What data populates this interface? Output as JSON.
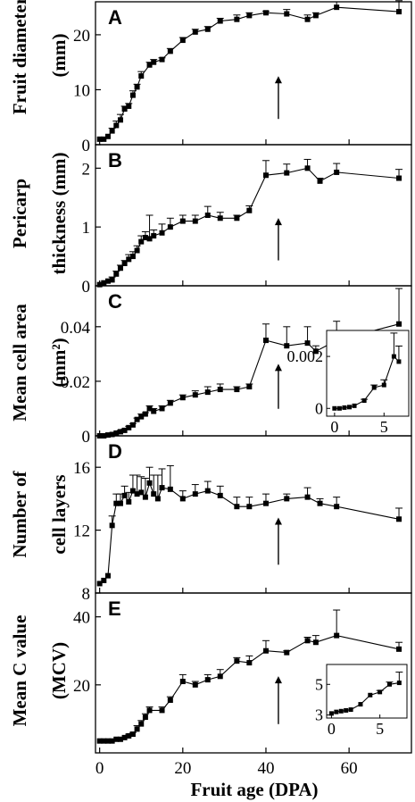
{
  "chart_data": [
    {
      "type": "line",
      "panel": "A",
      "ylabel": [
        "Fruit diameter",
        "(mm)"
      ],
      "xlim": [
        -1,
        75
      ],
      "ylim": [
        0,
        26
      ],
      "yticks": [
        0,
        10,
        20
      ],
      "arrow_x": 43,
      "series": [
        {
          "x": [
            0,
            1,
            2,
            3,
            4,
            5,
            6,
            7,
            8,
            9,
            10,
            12,
            13,
            15,
            17,
            20,
            23,
            26,
            29,
            33,
            36,
            40,
            45,
            50,
            52,
            57,
            72
          ],
          "y": [
            1,
            1,
            1.5,
            2.5,
            3.5,
            4.5,
            6.5,
            7,
            9,
            10.5,
            12.5,
            14.5,
            15,
            15.5,
            17,
            19,
            20.5,
            21,
            22.5,
            22.8,
            23.5,
            24,
            23.8,
            22.8,
            23.5,
            25,
            24.2
          ],
          "err": [
            0,
            0,
            0,
            0.5,
            0.8,
            1,
            0.5,
            0.5,
            0.8,
            0.5,
            0.8,
            0.5,
            0.5,
            0.3,
            0.5,
            0.5,
            0.5,
            0.5,
            0.5,
            0.8,
            0.5,
            0.3,
            0.8,
            0.8,
            0.5,
            1,
            2
          ]
        }
      ]
    },
    {
      "type": "line",
      "panel": "B",
      "ylabel": [
        "Pericarp",
        "thickness (mm)"
      ],
      "xlim": [
        -1,
        75
      ],
      "ylim": [
        0,
        2.4
      ],
      "yticks": [
        0,
        1,
        2
      ],
      "arrow_x": 43,
      "series": [
        {
          "x": [
            0,
            1,
            2,
            3,
            4,
            5,
            6,
            7,
            8,
            9,
            10,
            11,
            12,
            13,
            15,
            17,
            20,
            23,
            26,
            29,
            33,
            36,
            40,
            45,
            50,
            53,
            57,
            72
          ],
          "y": [
            0.02,
            0.05,
            0.08,
            0.1,
            0.2,
            0.3,
            0.38,
            0.45,
            0.5,
            0.6,
            0.75,
            0.82,
            0.8,
            0.85,
            0.9,
            1.0,
            1.1,
            1.1,
            1.2,
            1.15,
            1.15,
            1.28,
            1.88,
            1.92,
            2.0,
            1.78,
            1.93,
            1.83
          ],
          "err": [
            0,
            0,
            0,
            0.05,
            0.05,
            0.05,
            0.05,
            0.08,
            0.08,
            0.08,
            0.1,
            0.1,
            0.4,
            0.1,
            0.15,
            0.15,
            0.1,
            0.1,
            0.15,
            0.1,
            0.05,
            0.08,
            0.25,
            0.15,
            0.15,
            0.05,
            0.15,
            0.15
          ]
        }
      ]
    },
    {
      "type": "line",
      "panel": "C",
      "ylabel": [
        "Mean cell area",
        "(mm²)"
      ],
      "xlim": [
        -1,
        75
      ],
      "ylim": [
        0,
        0.055
      ],
      "yticks": [
        0,
        0.02,
        0.04
      ],
      "arrow_x": 43,
      "series": [
        {
          "x": [
            0,
            1,
            2,
            3,
            4,
            5,
            6,
            7,
            8,
            9,
            10,
            11,
            12,
            13,
            15,
            17,
            20,
            23,
            26,
            29,
            33,
            36,
            40,
            45,
            50,
            52,
            57,
            72
          ],
          "y": [
            0,
            0,
            0.0003,
            0.0005,
            0.001,
            0.0015,
            0.002,
            0.003,
            0.004,
            0.006,
            0.007,
            0.008,
            0.01,
            0.009,
            0.01,
            0.012,
            0.014,
            0.015,
            0.016,
            0.017,
            0.017,
            0.018,
            0.035,
            0.033,
            0.034,
            0.031,
            0.035,
            0.041
          ],
          "err": [
            0,
            0,
            0,
            0,
            0,
            0.0005,
            0.0005,
            0.0005,
            0.0005,
            0.0005,
            0.001,
            0.0005,
            0.001,
            0.001,
            0.001,
            0.001,
            0.001,
            0.0015,
            0.002,
            0.002,
            0.001,
            0.001,
            0.006,
            0.007,
            0.006,
            0.002,
            0.007,
            0.013
          ]
        }
      ],
      "inset": {
        "xlim": [
          -0.8,
          7.5
        ],
        "ylim": [
          -0.0003,
          0.003
        ],
        "xticks": [
          0,
          5
        ],
        "yticks": [
          0,
          0.002
        ],
        "x": [
          0,
          0.5,
          1,
          1.5,
          2,
          3,
          4,
          5,
          6,
          6.5
        ],
        "y": [
          0,
          0,
          3e-05,
          5e-05,
          0.0001,
          0.0003,
          0.0008,
          0.0009,
          0.002,
          0.0018
        ],
        "err": [
          0,
          0,
          0,
          0,
          0,
          5e-05,
          0.0001,
          0.0002,
          0.0009,
          0.0006
        ]
      }
    },
    {
      "type": "line",
      "panel": "D",
      "ylabel": [
        "Number of",
        "cell layers"
      ],
      "xlim": [
        -1,
        75
      ],
      "ylim": [
        8,
        18
      ],
      "yticks": [
        8,
        12,
        16
      ],
      "arrow_x": 43,
      "series": [
        {
          "x": [
            0,
            1,
            2,
            3,
            4,
            5,
            6,
            7,
            8,
            9,
            10,
            11,
            12,
            13,
            14,
            15,
            17,
            20,
            23,
            26,
            29,
            33,
            36,
            40,
            45,
            50,
            53,
            57,
            72
          ],
          "y": [
            8.6,
            8.8,
            9.1,
            12.3,
            13.7,
            13.7,
            14.2,
            13.8,
            14.5,
            14.3,
            14.4,
            14.1,
            15.0,
            14.3,
            14.0,
            14.7,
            14.6,
            14.0,
            14.3,
            14.5,
            14.2,
            13.5,
            13.5,
            13.7,
            14.0,
            14.1,
            13.7,
            13.5,
            12.7
          ],
          "err": [
            0,
            0,
            0,
            0.6,
            0.6,
            0.6,
            0.6,
            0.6,
            1.0,
            1.2,
            1.0,
            1.2,
            1.0,
            1.2,
            1.5,
            1.2,
            1.5,
            0.5,
            0.6,
            0.6,
            0.6,
            0.6,
            0.6,
            0.6,
            0.3,
            0.6,
            0.3,
            0.6,
            0.7
          ]
        }
      ]
    },
    {
      "type": "line",
      "panel": "E",
      "ylabel": [
        "Mean C value",
        "(MCV)"
      ],
      "xlim": [
        -1,
        75
      ],
      "ylim": [
        0,
        47
      ],
      "yticks": [
        20,
        40
      ],
      "arrow_x": 43,
      "series": [
        {
          "x": [
            0,
            1,
            2,
            3,
            4,
            5,
            6,
            7,
            8,
            9,
            10,
            11,
            12,
            15,
            17,
            20,
            23,
            26,
            29,
            33,
            36,
            40,
            45,
            50,
            52,
            57,
            72
          ],
          "y": [
            3.5,
            3.5,
            3.5,
            3.5,
            4,
            4,
            4.5,
            5,
            5.5,
            7,
            8.5,
            10.5,
            12.5,
            12.5,
            15.5,
            21,
            20,
            21.5,
            22.5,
            27,
            26.5,
            30,
            29.5,
            33,
            32.5,
            34.5,
            30.5
          ],
          "err": [
            0,
            0,
            0,
            0,
            0,
            0,
            0,
            0.5,
            0.5,
            1,
            1,
            1,
            1,
            1,
            1,
            2,
            1,
            1.5,
            2,
            1,
            2,
            3,
            0.5,
            1,
            2,
            7.5,
            2
          ]
        }
      ],
      "inset": {
        "xlim": [
          -0.5,
          7.8
        ],
        "ylim": [
          2.8,
          6.3
        ],
        "xticks": [
          0,
          5
        ],
        "yticks": [
          3,
          5
        ],
        "x": [
          0,
          0.5,
          1,
          1.5,
          2,
          3,
          4,
          5,
          6,
          7
        ],
        "y": [
          3.1,
          3.2,
          3.25,
          3.3,
          3.35,
          3.7,
          4.3,
          4.5,
          5.0,
          5.1
        ],
        "err": [
          0,
          0,
          0,
          0,
          0,
          0,
          0,
          0.1,
          0.15,
          0.7
        ]
      }
    }
  ],
  "xaxis": {
    "label": "Fruit age (DPA)",
    "ticks": [
      0,
      20,
      40,
      60
    ]
  }
}
